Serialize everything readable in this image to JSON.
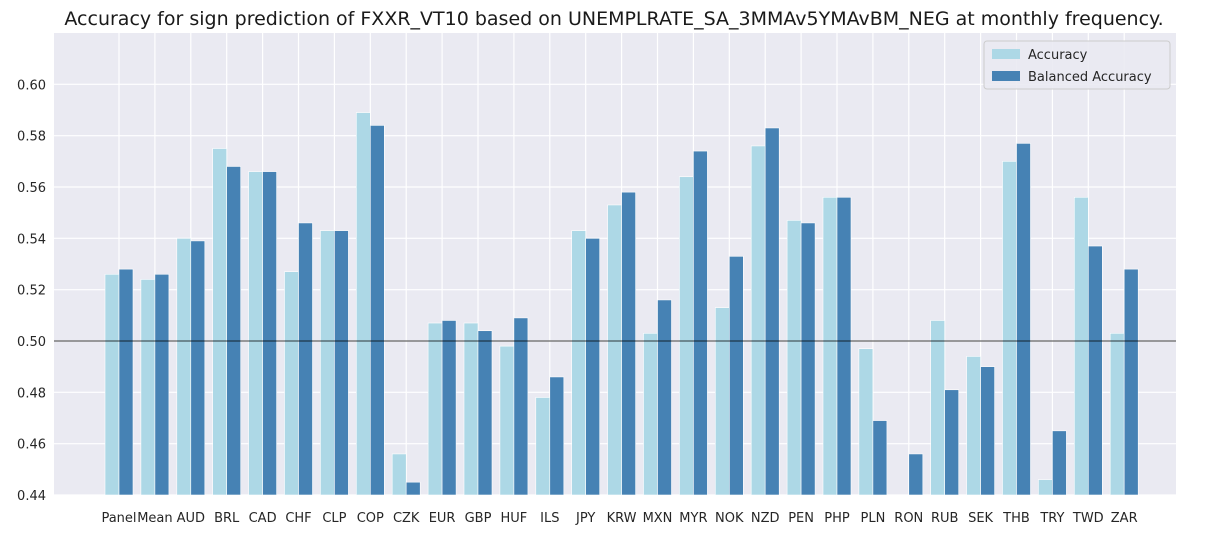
{
  "chart_data": {
    "type": "bar",
    "title": "Accuracy for sign prediction of FXXR_VT10 based on UNEMPLRATE_SA_3MMAv5YMAvBM_NEG at monthly frequency.",
    "xlabel": "",
    "ylabel": "",
    "categories": [
      "Panel",
      "Mean",
      "AUD",
      "BRL",
      "CAD",
      "CHF",
      "CLP",
      "COP",
      "CZK",
      "EUR",
      "GBP",
      "HUF",
      "ILS",
      "JPY",
      "KRW",
      "MXN",
      "MYR",
      "NOK",
      "NZD",
      "PEN",
      "PHP",
      "PLN",
      "RON",
      "RUB",
      "SEK",
      "THB",
      "TRY",
      "TWD",
      "ZAR"
    ],
    "series": [
      {
        "name": "Accuracy",
        "color": "#add8e6",
        "values": [
          0.526,
          0.524,
          0.54,
          0.575,
          0.566,
          0.527,
          0.543,
          0.589,
          0.456,
          0.507,
          0.507,
          0.498,
          0.478,
          0.543,
          0.553,
          0.503,
          0.564,
          0.513,
          0.576,
          0.547,
          0.556,
          0.497,
          0.44,
          0.508,
          0.494,
          0.57,
          0.446,
          0.556,
          0.503
        ]
      },
      {
        "name": "Balanced Accuracy",
        "color": "#4682b4",
        "values": [
          0.528,
          0.526,
          0.539,
          0.568,
          0.566,
          0.546,
          0.543,
          0.584,
          0.445,
          0.508,
          0.504,
          0.509,
          0.486,
          0.54,
          0.558,
          0.516,
          0.574,
          0.533,
          0.583,
          0.546,
          0.556,
          0.469,
          0.456,
          0.481,
          0.49,
          0.577,
          0.465,
          0.537,
          0.528
        ]
      }
    ],
    "ylim": [
      0.44,
      0.62
    ],
    "yticks": [
      "0.44",
      "0.46",
      "0.48",
      "0.50",
      "0.52",
      "0.54",
      "0.56",
      "0.58",
      "0.60"
    ],
    "reference_line": 0.5,
    "grid": true,
    "legend": "top-right",
    "background": "#eaeaf2"
  }
}
